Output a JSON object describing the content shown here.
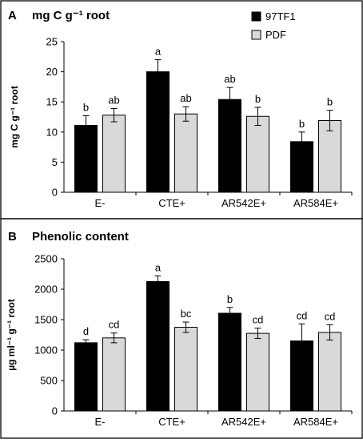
{
  "chart_data": [
    {
      "type": "bar",
      "panel": "A",
      "title": "mg C g⁻¹ root",
      "ylabel": "mg C g⁻¹ root",
      "xlabel": "",
      "categories": [
        "E-",
        "CTE+",
        "AR542E+",
        "AR584E+"
      ],
      "ylim": [
        0,
        25
      ],
      "yticks": [
        "0",
        "5",
        "10",
        "15",
        "20",
        "25"
      ],
      "series": [
        {
          "name": "97TF1",
          "color": "#000000",
          "values": [
            11.1,
            20.0,
            15.4,
            8.4
          ],
          "errors": [
            1.6,
            2.0,
            2.0,
            1.6
          ],
          "letters": [
            "b",
            "a",
            "ab",
            "b"
          ]
        },
        {
          "name": "PDF",
          "color": "#d9d9d9",
          "values": [
            12.8,
            13.0,
            12.6,
            11.9
          ],
          "errors": [
            1.1,
            1.2,
            1.5,
            1.7
          ],
          "letters": [
            "ab",
            "ab",
            "b",
            "b"
          ]
        }
      ],
      "legend": "top-right",
      "grid": false
    },
    {
      "type": "bar",
      "panel": "B",
      "title": "Phenolic content",
      "ylabel": "µg ml⁻¹ g⁻¹ root",
      "xlabel": "",
      "categories": [
        "E-",
        "CTE+",
        "AR542E+",
        "AR584E+"
      ],
      "ylim": [
        0,
        2500
      ],
      "yticks": [
        "0",
        "500",
        "1000",
        "1500",
        "2000",
        "2500"
      ],
      "series": [
        {
          "name": "97TF1",
          "color": "#000000",
          "values": [
            1120,
            2125,
            1605,
            1150
          ],
          "errors": [
            50,
            95,
            95,
            280
          ],
          "letters": [
            "d",
            "a",
            "b",
            "cd"
          ]
        },
        {
          "name": "PDF",
          "color": "#d9d9d9",
          "values": [
            1200,
            1375,
            1275,
            1290
          ],
          "errors": [
            80,
            85,
            85,
            125
          ],
          "letters": [
            "cd",
            "bc",
            "cd",
            "cd"
          ]
        }
      ],
      "grid": false
    }
  ]
}
